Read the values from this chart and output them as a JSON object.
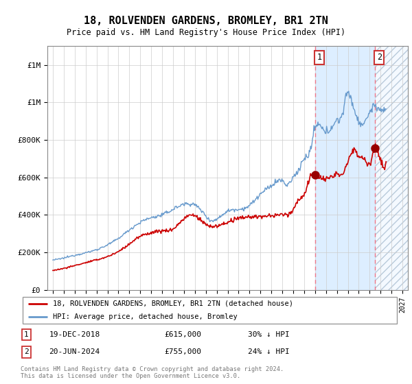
{
  "title": "18, ROLVENDEN GARDENS, BROMLEY, BR1 2TN",
  "subtitle": "Price paid vs. HM Land Registry's House Price Index (HPI)",
  "footer": "Contains HM Land Registry data © Crown copyright and database right 2024.\nThis data is licensed under the Open Government Licence v3.0.",
  "legend_line1": "18, ROLVENDEN GARDENS, BROMLEY, BR1 2TN (detached house)",
  "legend_line2": "HPI: Average price, detached house, Bromley",
  "transaction1": {
    "label": "1",
    "date": "19-DEC-2018",
    "price": "£615,000",
    "note": "30% ↓ HPI"
  },
  "transaction2": {
    "label": "2",
    "date": "20-JUN-2024",
    "price": "£755,000",
    "note": "24% ↓ HPI"
  },
  "hpi_color": "#6699cc",
  "price_color": "#cc0000",
  "marker_color": "#990000",
  "vline_color": "#ee6677",
  "shade_color": "#ddeeff",
  "ylim": [
    0,
    1300000
  ],
  "yticks": [
    0,
    200000,
    400000,
    600000,
    800000,
    1000000,
    1200000
  ],
  "transaction1_x": 2019.0,
  "transaction2_x": 2024.5,
  "transaction1_y": 615000,
  "transaction2_y": 755000,
  "xmin": 1995,
  "xmax": 2027.5
}
